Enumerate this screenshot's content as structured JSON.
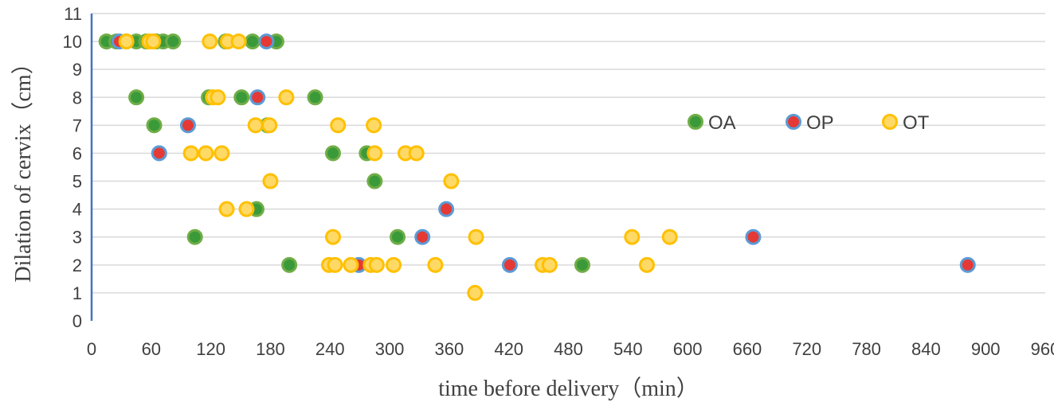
{
  "chart_data": {
    "type": "scatter",
    "title": "",
    "xlabel": "time before delivery（min）",
    "ylabel": "Dilation of cervix（cm）",
    "xlim": [
      0,
      960
    ],
    "ylim": [
      0,
      11
    ],
    "xticks": [
      0,
      60,
      120,
      180,
      240,
      300,
      360,
      420,
      480,
      540,
      600,
      660,
      720,
      780,
      840,
      900,
      960
    ],
    "yticks": [
      0,
      1,
      2,
      3,
      4,
      5,
      6,
      7,
      8,
      9,
      10,
      11
    ],
    "grid": true,
    "legend_position": "right",
    "series": [
      {
        "name": "OA",
        "fill": "#3a9a3a",
        "stroke": "#70ad47",
        "points": [
          [
            15,
            10
          ],
          [
            25,
            10
          ],
          [
            35,
            10
          ],
          [
            45,
            10
          ],
          [
            55,
            10
          ],
          [
            65,
            10
          ],
          [
            72,
            10
          ],
          [
            82,
            10
          ],
          [
            135,
            10
          ],
          [
            162,
            10
          ],
          [
            186,
            10
          ],
          [
            45,
            8
          ],
          [
            118,
            8
          ],
          [
            151,
            8
          ],
          [
            225,
            8
          ],
          [
            63,
            7
          ],
          [
            177,
            7
          ],
          [
            243,
            6
          ],
          [
            277,
            6
          ],
          [
            285,
            5
          ],
          [
            166,
            4
          ],
          [
            104,
            3
          ],
          [
            308,
            3
          ],
          [
            199,
            2
          ],
          [
            494,
            2
          ]
        ]
      },
      {
        "name": "OP",
        "fill": "#e53935",
        "stroke": "#5b9bd5",
        "points": [
          [
            28,
            10
          ],
          [
            176,
            10
          ],
          [
            167,
            8
          ],
          [
            97,
            7
          ],
          [
            68,
            6
          ],
          [
            357,
            4
          ],
          [
            333,
            3
          ],
          [
            666,
            3
          ],
          [
            269,
            2
          ],
          [
            421,
            2
          ],
          [
            882,
            2
          ]
        ]
      },
      {
        "name": "OT",
        "fill": "#ffd966",
        "stroke": "#ffc000",
        "points": [
          [
            35,
            10
          ],
          [
            58,
            10
          ],
          [
            62,
            10
          ],
          [
            119,
            10
          ],
          [
            137,
            10
          ],
          [
            148,
            10
          ],
          [
            122,
            8
          ],
          [
            127,
            8
          ],
          [
            196,
            8
          ],
          [
            165,
            7
          ],
          [
            179,
            7
          ],
          [
            248,
            7
          ],
          [
            284,
            7
          ],
          [
            100,
            6
          ],
          [
            115,
            6
          ],
          [
            131,
            6
          ],
          [
            285,
            6
          ],
          [
            316,
            6
          ],
          [
            327,
            6
          ],
          [
            180,
            5
          ],
          [
            362,
            5
          ],
          [
            136,
            4
          ],
          [
            156,
            4
          ],
          [
            243,
            3
          ],
          [
            387,
            3
          ],
          [
            544,
            3
          ],
          [
            582,
            3
          ],
          [
            239,
            2
          ],
          [
            245,
            2
          ],
          [
            261,
            2
          ],
          [
            281,
            2
          ],
          [
            287,
            2
          ],
          [
            304,
            2
          ],
          [
            346,
            2
          ],
          [
            454,
            2
          ],
          [
            461,
            2
          ],
          [
            559,
            2
          ],
          [
            386,
            1
          ]
        ]
      }
    ]
  }
}
